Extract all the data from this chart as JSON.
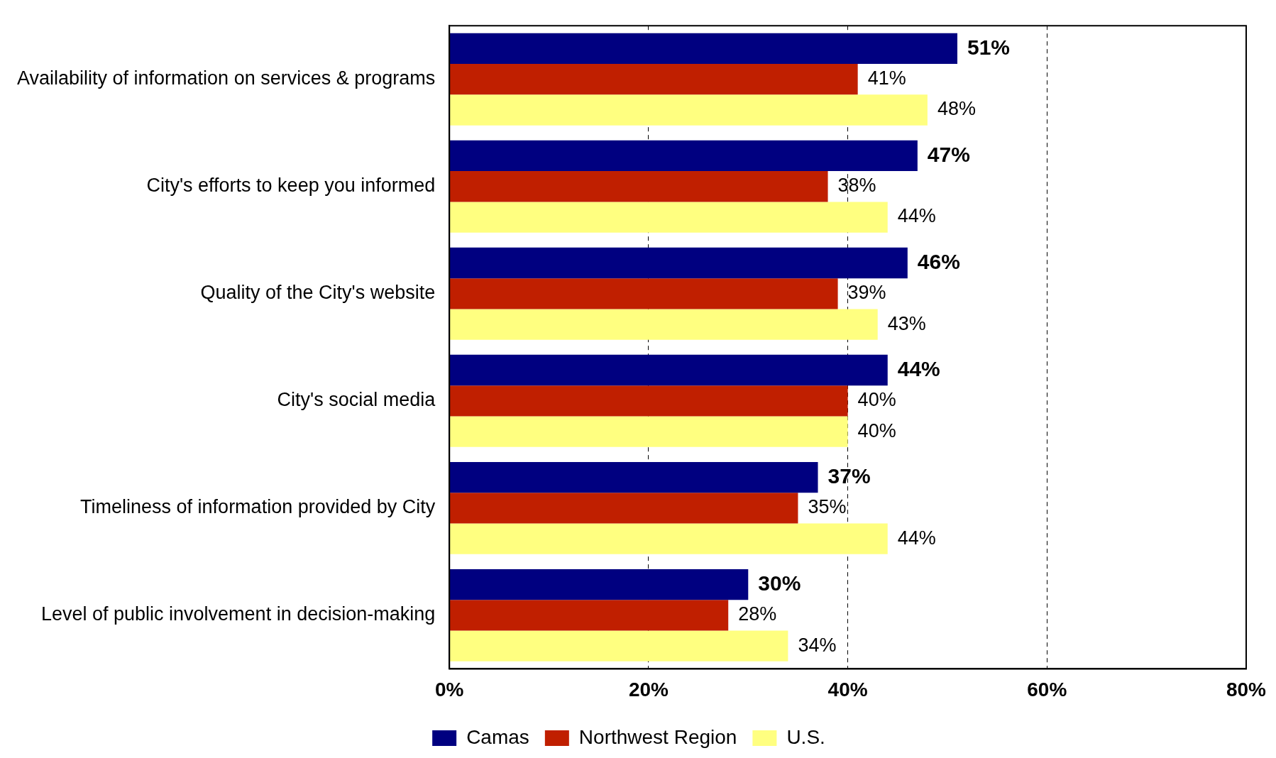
{
  "chart_data": {
    "type": "bar",
    "orientation": "horizontal",
    "categories": [
      "Availability of information on services & programs",
      "City's efforts to keep you informed",
      "Quality of the City's website",
      "City's social media",
      "Timeliness of information provided by City",
      "Level of public involvement in decision-making"
    ],
    "series": [
      {
        "name": "Camas",
        "color": "#000080",
        "values": [
          51,
          47,
          46,
          44,
          37,
          30
        ],
        "value_labels": [
          "51%",
          "47%",
          "46%",
          "44%",
          "37%",
          "30%"
        ]
      },
      {
        "name": "Northwest Region",
        "color": "#c01f00",
        "values": [
          41,
          38,
          39,
          40,
          35,
          28
        ],
        "value_labels": [
          "41%",
          "38%",
          "39%",
          "40%",
          "35%",
          "28%"
        ]
      },
      {
        "name": "U.S.",
        "color": "#ffff80",
        "values": [
          48,
          44,
          43,
          40,
          44,
          34
        ],
        "value_labels": [
          "48%",
          "44%",
          "43%",
          "40%",
          "44%",
          "34%"
        ]
      }
    ],
    "xlim": [
      0,
      80
    ],
    "xticks": [
      {
        "value": 0,
        "label": "0%"
      },
      {
        "value": 20,
        "label": "20%"
      },
      {
        "value": 40,
        "label": "40%"
      },
      {
        "value": 60,
        "label": "60%"
      },
      {
        "value": 80,
        "label": "80%"
      }
    ],
    "grid": "x",
    "legend": "bottom"
  }
}
